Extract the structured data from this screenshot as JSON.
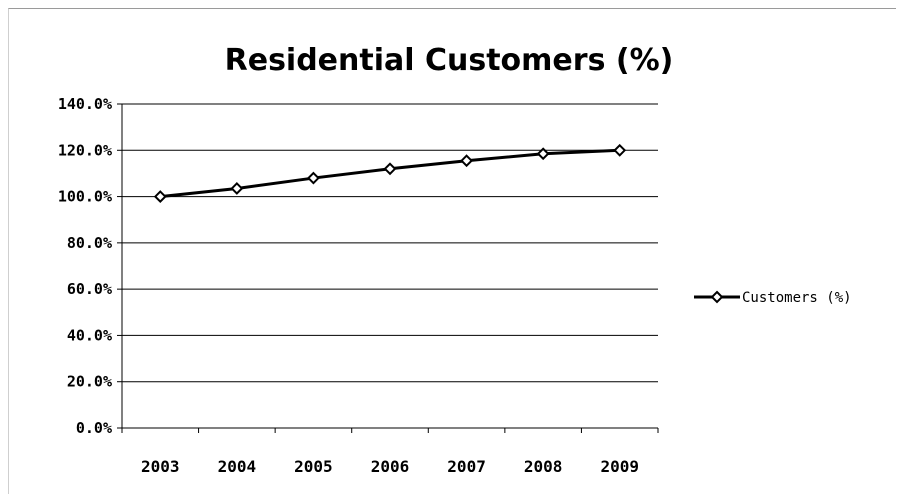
{
  "chart_data": {
    "type": "line",
    "title": "Residential Customers (%)",
    "xlabel": "",
    "ylabel": "",
    "categories": [
      "2003",
      "2004",
      "2005",
      "2006",
      "2007",
      "2008",
      "2009"
    ],
    "series": [
      {
        "name": "Customers (%)",
        "values": [
          100.0,
          103.5,
          108.0,
          112.0,
          115.5,
          118.5,
          120.0
        ]
      }
    ],
    "ylim": [
      0,
      140
    ],
    "yticks": [
      0,
      20,
      40,
      60,
      80,
      100,
      120,
      140
    ],
    "ytick_labels": [
      "0.0%",
      "20.0%",
      "40.0%",
      "60.0%",
      "80.0%",
      "100.0%",
      "120.0%",
      "140.0%"
    ],
    "grid": true,
    "legend_position": "right",
    "colors": {
      "line": "#000000",
      "marker_fill": "#ffffff",
      "grid": "#000000"
    }
  }
}
